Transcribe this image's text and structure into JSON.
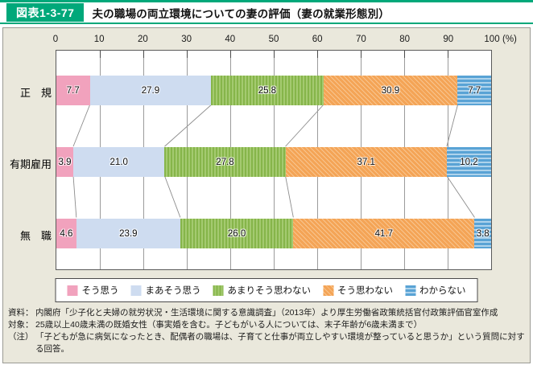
{
  "header": {
    "badge": "図表1-3-77",
    "title": "夫の職場の両立環境についての妻の評価（妻の就業形態別）"
  },
  "colors": {
    "accent_green": "#00a87a",
    "content_bg": "#eae8dc",
    "plot_border": "#5a5a5a",
    "gridline": "#9b9b9b",
    "connector": "#8c8c8c"
  },
  "chart_data": {
    "type": "bar",
    "stacked": true,
    "orientation": "horizontal",
    "title": "夫の職場の両立環境についての妻の評価（妻の就業形態別）",
    "unit_label": "(%)",
    "xlim": [
      0,
      100
    ],
    "axis_ticks": [
      0,
      10,
      20,
      30,
      40,
      50,
      60,
      70,
      80,
      90,
      100
    ],
    "grid": true,
    "legend_position": "bottom",
    "categories": [
      "正　規",
      "有期雇用",
      "無　職"
    ],
    "series": [
      {
        "name": "そう思う",
        "values": [
          7.7,
          3.9,
          4.6
        ],
        "color": "#f1a2bd",
        "stripe_color": "#f1a2bd",
        "pattern": "solid"
      },
      {
        "name": "まあそう思う",
        "values": [
          27.9,
          21.0,
          23.9
        ],
        "color": "#cedcf0",
        "stripe_color": "#cedcf0",
        "pattern": "solid"
      },
      {
        "name": "あまりそう思わない",
        "values": [
          25.8,
          27.8,
          26.0
        ],
        "color": "#a4ca70",
        "stripe_color": "#86b54a",
        "pattern": "vertical-stripes"
      },
      {
        "name": "そう思わない",
        "values": [
          30.9,
          37.1,
          41.7
        ],
        "color": "#f4a456",
        "stripe_color": "#f8c58f",
        "pattern": "diagonal-stripes"
      },
      {
        "name": "わからない",
        "values": [
          7.7,
          10.2,
          3.8
        ],
        "color": "#59a3d5",
        "stripe_color": "#aed3ec",
        "pattern": "horizontal-stripes"
      }
    ]
  },
  "footer": {
    "items": [
      {
        "label": "資料：",
        "text": "内閣府「少子化と夫婦の就労状況・生活環境に関する意識調査」（2013年）より厚生労働省政策統括官付政策評価官室作成"
      },
      {
        "label": "対象：",
        "text": "25歳以上40歳未満の既婚女性（事実婚を含む。子どもがいる人については、末子年齢が6歳未満まで）"
      },
      {
        "label": "（注）",
        "text": "「子どもが急に病気になったとき、配偶者の職場は、子育てと仕事が両立しやすい環境が整っていると思うか」という質問に対する回答。"
      }
    ]
  }
}
